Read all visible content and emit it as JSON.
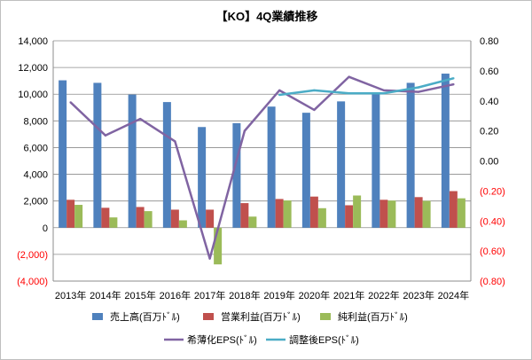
{
  "chart_data": {
    "type": "bar",
    "title": "【KO】4Q業績推移",
    "categories": [
      "2013年",
      "2014年",
      "2015年",
      "2016年",
      "2017年",
      "2018年",
      "2019年",
      "2020年",
      "2021年",
      "2022年",
      "2023年",
      "2024年"
    ],
    "left_axis": {
      "ylim": [
        -4000,
        14000
      ],
      "ticks": [
        -4000,
        -2000,
        0,
        2000,
        4000,
        6000,
        8000,
        10000,
        12000,
        14000
      ],
      "tick_labels": [
        "(4,000)",
        "(2,000)",
        "0",
        "2,000",
        "4,000",
        "6,000",
        "8,000",
        "10,000",
        "12,000",
        "14,000"
      ]
    },
    "right_axis": {
      "ylim": [
        -0.8,
        0.8
      ],
      "ticks": [
        -0.8,
        -0.6,
        -0.4,
        -0.2,
        0,
        0.2,
        0.4,
        0.6,
        0.8
      ],
      "tick_labels": [
        "(0.80)",
        "(0.60)",
        "(0.40)",
        "(0.20)",
        "0.00",
        "0.20",
        "0.40",
        "0.60",
        "0.80"
      ]
    },
    "series": [
      {
        "name": "売上高(百万ﾄﾞﾙ)",
        "type": "bar",
        "axis": "left",
        "color": "#4f81bd",
        "values": [
          11040,
          10850,
          9970,
          9410,
          7540,
          7830,
          9070,
          8610,
          9460,
          10130,
          10850,
          11540
        ]
      },
      {
        "name": "営業利益(百万ﾄﾞﾙ)",
        "type": "bar",
        "axis": "left",
        "color": "#c0504d",
        "values": [
          2090,
          1490,
          1550,
          1350,
          1350,
          1840,
          2150,
          2330,
          1680,
          2090,
          2290,
          2740
        ]
      },
      {
        "name": "純利益(百万ﾄﾞﾙ)",
        "type": "bar",
        "axis": "left",
        "color": "#9bbb59",
        "values": [
          1710,
          770,
          1240,
          550,
          -2750,
          830,
          2040,
          1460,
          2410,
          2030,
          2010,
          2200
        ]
      },
      {
        "name": "希薄化EPS(ﾄﾞﾙ)",
        "type": "line",
        "axis": "right",
        "color": "#8064a2",
        "values": [
          0.39,
          0.17,
          0.28,
          0.13,
          -0.65,
          0.2,
          0.47,
          0.34,
          0.56,
          0.47,
          0.46,
          0.51
        ]
      },
      {
        "name": "調整後EPS(ﾄﾞﾙ)",
        "type": "line",
        "axis": "right",
        "color": "#4bacc6",
        "values": [
          null,
          null,
          null,
          null,
          null,
          null,
          0.44,
          0.47,
          0.45,
          0.45,
          0.49,
          0.55
        ]
      }
    ],
    "gridlines": true,
    "legend_position": "bottom",
    "negative_label_color": "#ff0000"
  }
}
